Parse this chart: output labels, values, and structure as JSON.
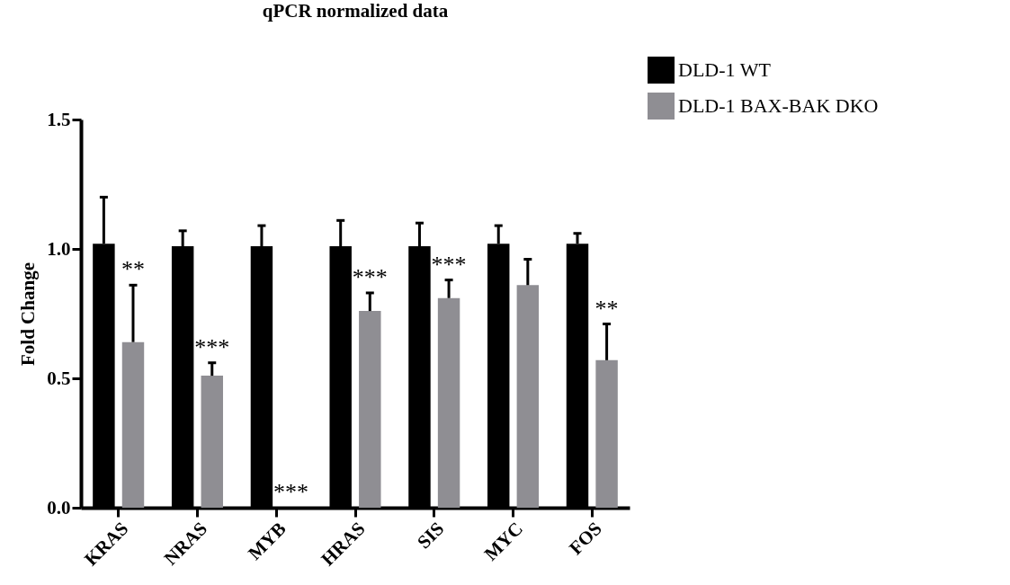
{
  "chart_data": {
    "type": "bar",
    "title": "qPCR normalized data",
    "ylabel": "Fold Change",
    "categories": [
      "KRAS",
      "NRAS",
      "MYB",
      "HRAS",
      "SIS",
      "MYC",
      "FOS"
    ],
    "series": [
      {
        "name": "DLD-1 WT",
        "color": "#000000",
        "values": [
          1.02,
          1.01,
          1.01,
          1.01,
          1.01,
          1.02,
          1.02
        ],
        "errors": [
          [
            1.02,
            1.2
          ],
          [
            1.01,
            1.07
          ],
          [
            1.01,
            1.09
          ],
          [
            1.01,
            1.11
          ],
          [
            1.01,
            1.1
          ],
          [
            1.02,
            1.09
          ],
          [
            1.02,
            1.06
          ]
        ]
      },
      {
        "name": "DLD-1 BAX-BAK DKO",
        "color": "#8f8e93",
        "values": [
          0.64,
          0.51,
          0,
          0.76,
          0.81,
          0.86,
          0.57
        ],
        "errors": [
          [
            0.64,
            0.86
          ],
          [
            0.51,
            0.56
          ],
          null,
          [
            0.76,
            0.83
          ],
          [
            0.81,
            0.88
          ],
          [
            0.86,
            0.96
          ],
          [
            0.57,
            0.71
          ]
        ]
      }
    ],
    "ylim": [
      0,
      1.5
    ],
    "yticks": [
      {
        "value": 0,
        "label": "0.0"
      },
      {
        "value": 0.5,
        "label": "0.5"
      },
      {
        "value": 1,
        "label": "1.0"
      },
      {
        "value": 1.5,
        "label": "1.5"
      }
    ],
    "grid": false,
    "legend": "top right",
    "annotations": [
      {
        "text": "**",
        "x": "KRAS",
        "y": 0.86
      },
      {
        "text": "***",
        "x": "NRAS",
        "y": 0.56
      },
      {
        "text": "***",
        "x": "MYB",
        "y": 0
      },
      {
        "text": "***",
        "x": "HRAS",
        "y": 0.83
      },
      {
        "text": "***",
        "x": "SIS",
        "y": 0.88
      },
      {
        "text": "**",
        "x": "FOS",
        "y": 0.71
      }
    ]
  }
}
